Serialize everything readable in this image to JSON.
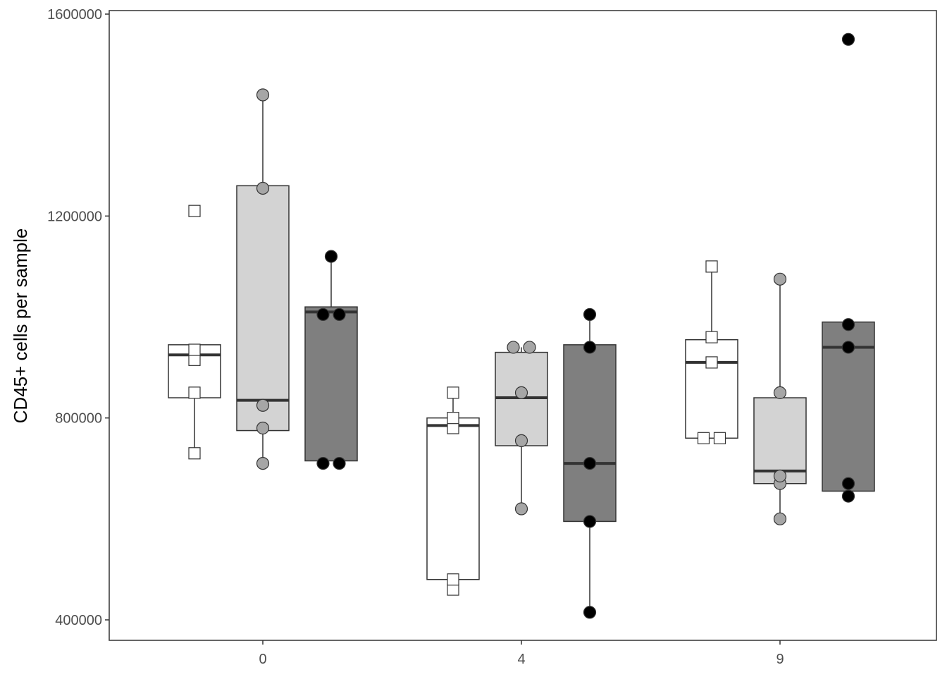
{
  "chart_data": {
    "type": "boxplot",
    "title": "",
    "xlabel": "",
    "ylabel": "CD45+ cells per sample",
    "categories": [
      "0",
      "4",
      "9"
    ],
    "ylim": [
      360000,
      1620000
    ],
    "yticks": [
      400000,
      800000,
      1200000,
      1600000
    ],
    "ytick_labels": [
      "400000",
      "800000",
      "1200000",
      "1600000"
    ],
    "grid": false,
    "legend": "none",
    "groups": [
      {
        "fill": "#ffffff",
        "marker": "square",
        "marker_fill": "#ffffff",
        "boxes": [
          {
            "category": "0",
            "whisker_low": 730000,
            "q1": 840000,
            "median": 925000,
            "q3": 945000,
            "whisker_high": 945000,
            "points": [
              730000,
              850000,
              915000,
              935000,
              1210000
            ]
          },
          {
            "category": "4",
            "whisker_low": 480000,
            "q1": 480000,
            "median": 785000,
            "q3": 800000,
            "whisker_high": 850000,
            "points": [
              460000,
              480000,
              780000,
              800000,
              850000
            ]
          },
          {
            "category": "9",
            "whisker_low": 760000,
            "q1": 760000,
            "median": 910000,
            "q3": 955000,
            "whisker_high": 1100000,
            "points": [
              760000,
              760000,
              910000,
              960000,
              1100000
            ]
          }
        ]
      },
      {
        "fill": "#d3d3d3",
        "marker": "circle",
        "marker_fill": "#a6a6a6",
        "boxes": [
          {
            "category": "0",
            "whisker_low": 710000,
            "q1": 775000,
            "median": 835000,
            "q3": 1260000,
            "whisker_high": 1440000,
            "points": [
              710000,
              780000,
              825000,
              1255000,
              1440000
            ]
          },
          {
            "category": "4",
            "whisker_low": 620000,
            "q1": 745000,
            "median": 840000,
            "q3": 930000,
            "whisker_high": 940000,
            "points": [
              620000,
              755000,
              850000,
              940000,
              940000
            ]
          },
          {
            "category": "9",
            "whisker_low": 600000,
            "q1": 670000,
            "median": 695000,
            "q3": 840000,
            "whisker_high": 1075000,
            "points": [
              600000,
              670000,
              685000,
              850000,
              1075000
            ]
          }
        ]
      },
      {
        "fill": "#7f7f7f",
        "marker": "circle",
        "marker_fill": "#000000",
        "boxes": [
          {
            "category": "0",
            "whisker_low": 715000,
            "q1": 715000,
            "median": 1010000,
            "q3": 1020000,
            "whisker_high": 1120000,
            "points": [
              710000,
              710000,
              1005000,
              1005000,
              1120000
            ]
          },
          {
            "category": "4",
            "whisker_low": 415000,
            "q1": 595000,
            "median": 710000,
            "q3": 945000,
            "whisker_high": 1005000,
            "points": [
              415000,
              595000,
              710000,
              940000,
              1005000
            ]
          },
          {
            "category": "9",
            "whisker_low": 655000,
            "q1": 655000,
            "median": 940000,
            "q3": 990000,
            "whisker_high": 990000,
            "points": [
              645000,
              670000,
              940000,
              985000,
              1550000
            ]
          }
        ]
      }
    ]
  }
}
